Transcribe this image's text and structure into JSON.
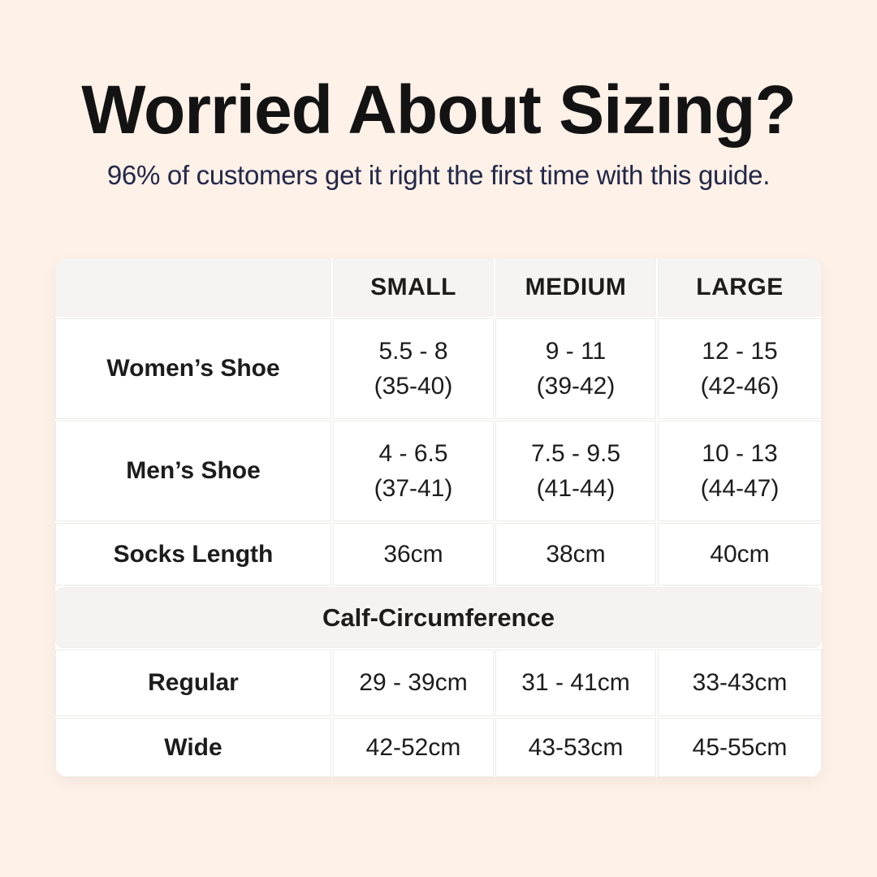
{
  "header": {
    "title": "Worried About Sizing?",
    "subtitle": "96% of customers get it right the first time with this guide."
  },
  "colors": {
    "background": "#fdf1e8",
    "table_background": "#ffffff",
    "header_row_background": "#f5f4f2",
    "section_band_background": "#f4f3f1",
    "cell_border": "#ebebe9",
    "title_text": "#131313",
    "subtitle_text": "#232848",
    "table_text": "#1c1c1c"
  },
  "chart_data": {
    "type": "table",
    "title": "Worried About Sizing?",
    "subtitle": "96% of customers get it right the first time with this guide.",
    "columns": [
      "",
      "SMALL",
      "MEDIUM",
      "LARGE"
    ],
    "sections": [
      {
        "rows": [
          {
            "label": "Women’s Shoe",
            "small": [
              "5.5 - 8",
              "(35-40)"
            ],
            "medium": [
              "9 - 11",
              "(39-42)"
            ],
            "large": [
              "12 - 15",
              "(42-46)"
            ]
          },
          {
            "label": "Men’s Shoe",
            "small": [
              "4 - 6.5",
              "(37-41)"
            ],
            "medium": [
              "7.5 - 9.5",
              "(41-44)"
            ],
            "large": [
              "10 - 13",
              "(44-47)"
            ]
          },
          {
            "label": "Socks Length",
            "small": [
              "36cm"
            ],
            "medium": [
              "38cm"
            ],
            "large": [
              "40cm"
            ]
          }
        ]
      },
      {
        "header": "Calf-Circumference",
        "rows": [
          {
            "label": "Regular",
            "small": [
              "29 - 39cm"
            ],
            "medium": [
              "31 - 41cm"
            ],
            "large": [
              "33-43cm"
            ]
          },
          {
            "label": "Wide",
            "small": [
              "42-52cm"
            ],
            "medium": [
              "43-53cm"
            ],
            "large": [
              "45-55cm"
            ]
          }
        ]
      }
    ]
  }
}
